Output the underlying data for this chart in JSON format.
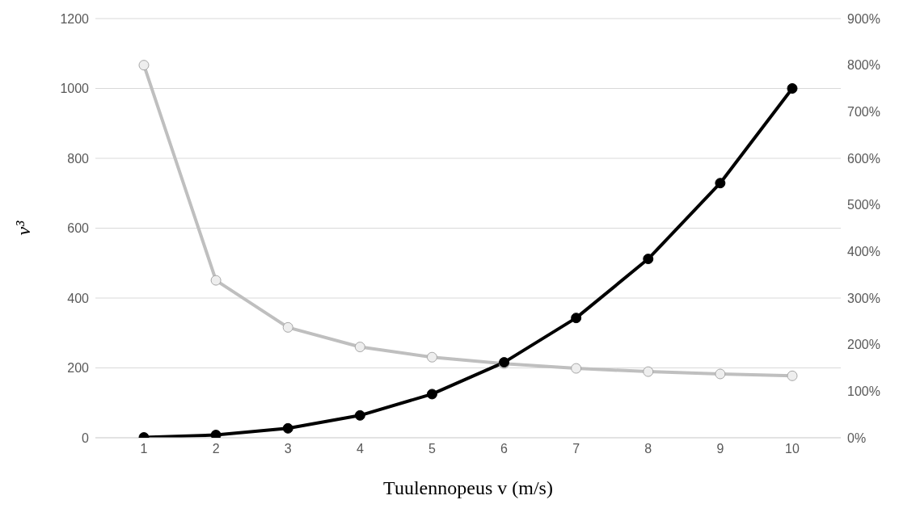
{
  "chart_data": {
    "type": "line",
    "xlabel": "Tuulennopeus v (m/s)",
    "ylabel": "v³",
    "categories": [
      "1",
      "2",
      "3",
      "4",
      "5",
      "6",
      "7",
      "8",
      "9",
      "10"
    ],
    "series": [
      {
        "color": "#000000",
        "values": [
          1,
          8,
          27,
          64,
          125,
          216,
          343,
          512,
          729,
          1000
        ]
      },
      {
        "color": "#bfbfbf",
        "axis": "y2",
        "values": [
          800,
          338,
          237,
          195,
          173,
          159,
          149,
          142,
          137,
          133
        ]
      }
    ],
    "ylim": [
      0,
      1200
    ],
    "yticks": [
      0,
      200,
      400,
      600,
      800,
      1000,
      1200
    ],
    "y2lim": [
      0,
      900
    ],
    "y2ticks": [
      {
        "value": 0,
        "label": "0%"
      },
      {
        "value": 100,
        "label": "100%"
      },
      {
        "value": 200,
        "label": "200%"
      },
      {
        "value": 300,
        "label": "300%"
      },
      {
        "value": 400,
        "label": "400%"
      },
      {
        "value": 500,
        "label": "500%"
      },
      {
        "value": 600,
        "label": "600%"
      },
      {
        "value": 700,
        "label": "700%"
      },
      {
        "value": 800,
        "label": "800%"
      },
      {
        "value": 900,
        "label": "900%"
      }
    ],
    "grid": "y",
    "legend": false,
    "marker": "circle",
    "line_style": "solid"
  }
}
